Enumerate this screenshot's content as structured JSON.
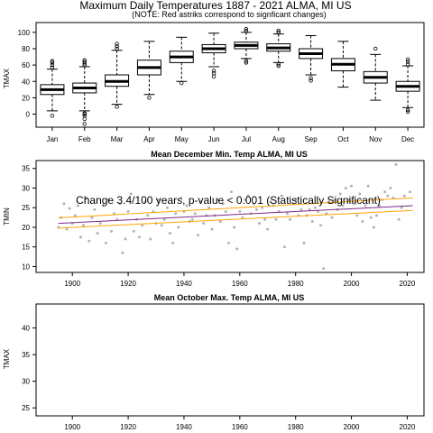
{
  "chart_data": [
    {
      "type": "box",
      "title": "Maximum Daily Temperatures 1887 - 2021 ALMA, MI US",
      "subtitle": "(NOTE: Red astriks correspond to signficant changes)",
      "ylabel": "TMAX",
      "ylim": [
        -16,
        112
      ],
      "yticks": [
        0,
        20,
        40,
        60,
        80,
        100
      ],
      "categories": [
        "Jan",
        "Feb",
        "Mar",
        "Apr",
        "May",
        "Jun",
        "Jul",
        "Aug",
        "Sep",
        "Oct",
        "Nov",
        "Dec"
      ],
      "boxes": [
        {
          "whislo": 4,
          "q1": 24,
          "med": 30,
          "q3": 36,
          "whishi": 55,
          "outliers": [
            -2,
            57,
            60,
            63,
            65
          ]
        },
        {
          "whislo": 4,
          "q1": 26,
          "med": 32,
          "q3": 38,
          "whishi": 58,
          "outliers": [
            -12,
            -6,
            -2,
            0,
            1,
            60,
            62,
            64,
            66
          ]
        },
        {
          "whislo": 12,
          "q1": 34,
          "med": 40,
          "q3": 48,
          "whishi": 78,
          "outliers": [
            9,
            80,
            83,
            86
          ]
        },
        {
          "whislo": 24,
          "q1": 48,
          "med": 57,
          "q3": 66,
          "whishi": 89,
          "outliers": [
            20
          ]
        },
        {
          "whislo": 40,
          "q1": 63,
          "med": 70,
          "q3": 77,
          "whishi": 94,
          "outliers": [
            38
          ]
        },
        {
          "whislo": 58,
          "q1": 75,
          "med": 80,
          "q3": 85,
          "whishi": 99,
          "outliers": [
            46,
            50,
            53
          ]
        },
        {
          "whislo": 68,
          "q1": 80,
          "med": 84,
          "q3": 88,
          "whishi": 100,
          "outliers": [
            63,
            65,
            102,
            104
          ]
        },
        {
          "whislo": 63,
          "q1": 77,
          "med": 81,
          "q3": 86,
          "whishi": 98,
          "outliers": [
            59,
            61,
            100,
            102
          ]
        },
        {
          "whislo": 48,
          "q1": 68,
          "med": 74,
          "q3": 80,
          "whishi": 96,
          "outliers": [
            41,
            44
          ]
        },
        {
          "whislo": 33,
          "q1": 53,
          "med": 61,
          "q3": 68,
          "whishi": 89,
          "outliers": []
        },
        {
          "whislo": 17,
          "q1": 38,
          "med": 45,
          "q3": 52,
          "whishi": 73,
          "outliers": [
            80
          ]
        },
        {
          "whislo": 8,
          "q1": 28,
          "med": 34,
          "q3": 40,
          "whishi": 59,
          "outliers": [
            3,
            5,
            61,
            64,
            67
          ]
        }
      ]
    },
    {
      "type": "scatter",
      "title": "Mean December Min. Temp ALMA, MI US",
      "ylabel": "TMIN",
      "xlim": [
        1887,
        2026
      ],
      "ylim": [
        8.5,
        37
      ],
      "xticks": [
        1900,
        1920,
        1940,
        1960,
        1980,
        2000,
        2020
      ],
      "yticks": [
        10,
        15,
        20,
        25,
        30,
        35
      ],
      "annotation": "Change 3.4/100 years, p-value < 0.001 (Statistically Significant)",
      "points": [
        {
          "x": 1895,
          "y": 20.0
        },
        {
          "x": 1896,
          "y": 22.5
        },
        {
          "x": 1897,
          "y": 26.0
        },
        {
          "x": 1898,
          "y": 19.5
        },
        {
          "x": 1899,
          "y": 24.8
        },
        {
          "x": 1900,
          "y": 21.0
        },
        {
          "x": 1901,
          "y": 23.0
        },
        {
          "x": 1902,
          "y": 25.5
        },
        {
          "x": 1903,
          "y": 17.5
        },
        {
          "x": 1904,
          "y": 20.5
        },
        {
          "x": 1905,
          "y": 27.5
        },
        {
          "x": 1906,
          "y": 16.5
        },
        {
          "x": 1907,
          "y": 22.5
        },
        {
          "x": 1908,
          "y": 24.5
        },
        {
          "x": 1909,
          "y": 18.5
        },
        {
          "x": 1910,
          "y": 21.0
        },
        {
          "x": 1911,
          "y": 25.5
        },
        {
          "x": 1912,
          "y": 16.0
        },
        {
          "x": 1913,
          "y": 27.0
        },
        {
          "x": 1914,
          "y": 19.0
        },
        {
          "x": 1915,
          "y": 23.5
        },
        {
          "x": 1916,
          "y": 22.0
        },
        {
          "x": 1917,
          "y": 26.0
        },
        {
          "x": 1918,
          "y": 13.5
        },
        {
          "x": 1919,
          "y": 17.0
        },
        {
          "x": 1920,
          "y": 24.0
        },
        {
          "x": 1921,
          "y": 28.5
        },
        {
          "x": 1922,
          "y": 19.0
        },
        {
          "x": 1923,
          "y": 22.0
        },
        {
          "x": 1924,
          "y": 17.5
        },
        {
          "x": 1925,
          "y": 20.5
        },
        {
          "x": 1926,
          "y": 26.5
        },
        {
          "x": 1927,
          "y": 23.0
        },
        {
          "x": 1928,
          "y": 17.0
        },
        {
          "x": 1929,
          "y": 24.0
        },
        {
          "x": 1930,
          "y": 21.0
        },
        {
          "x": 1931,
          "y": 27.0
        },
        {
          "x": 1932,
          "y": 20.5
        },
        {
          "x": 1933,
          "y": 22.0
        },
        {
          "x": 1934,
          "y": 25.0
        },
        {
          "x": 1935,
          "y": 18.5
        },
        {
          "x": 1936,
          "y": 16.0
        },
        {
          "x": 1937,
          "y": 23.5
        },
        {
          "x": 1938,
          "y": 20.0
        },
        {
          "x": 1939,
          "y": 27.5
        },
        {
          "x": 1940,
          "y": 24.0
        },
        {
          "x": 1941,
          "y": 25.5
        },
        {
          "x": 1942,
          "y": 21.5
        },
        {
          "x": 1943,
          "y": 22.0
        },
        {
          "x": 1944,
          "y": 23.5
        },
        {
          "x": 1945,
          "y": 18.0
        },
        {
          "x": 1946,
          "y": 26.5
        },
        {
          "x": 1947,
          "y": 21.0
        },
        {
          "x": 1948,
          "y": 23.0
        },
        {
          "x": 1949,
          "y": 25.0
        },
        {
          "x": 1950,
          "y": 19.5
        },
        {
          "x": 1951,
          "y": 23.0
        },
        {
          "x": 1952,
          "y": 27.0
        },
        {
          "x": 1953,
          "y": 21.5
        },
        {
          "x": 1954,
          "y": 26.0
        },
        {
          "x": 1955,
          "y": 24.0
        },
        {
          "x": 1956,
          "y": 16.0
        },
        {
          "x": 1957,
          "y": 29.0
        },
        {
          "x": 1958,
          "y": 20.0
        },
        {
          "x": 1959,
          "y": 14.5
        },
        {
          "x": 1960,
          "y": 24.0
        },
        {
          "x": 1961,
          "y": 22.5
        },
        {
          "x": 1962,
          "y": 27.0
        },
        {
          "x": 1963,
          "y": 28.0
        },
        {
          "x": 1964,
          "y": 23.5
        },
        {
          "x": 1965,
          "y": 26.0
        },
        {
          "x": 1966,
          "y": 24.5
        },
        {
          "x": 1967,
          "y": 21.0
        },
        {
          "x": 1968,
          "y": 25.0
        },
        {
          "x": 1969,
          "y": 22.0
        },
        {
          "x": 1970,
          "y": 19.5
        },
        {
          "x": 1971,
          "y": 26.5
        },
        {
          "x": 1972,
          "y": 25.5
        },
        {
          "x": 1973,
          "y": 22.0
        },
        {
          "x": 1974,
          "y": 24.0
        },
        {
          "x": 1975,
          "y": 28.0
        },
        {
          "x": 1976,
          "y": 15.0
        },
        {
          "x": 1977,
          "y": 23.5
        },
        {
          "x": 1978,
          "y": 22.0
        },
        {
          "x": 1979,
          "y": 26.0
        },
        {
          "x": 1980,
          "y": 27.0
        },
        {
          "x": 1981,
          "y": 23.0
        },
        {
          "x": 1982,
          "y": 24.5
        },
        {
          "x": 1983,
          "y": 16.0
        },
        {
          "x": 1984,
          "y": 23.0
        },
        {
          "x": 1985,
          "y": 24.5
        },
        {
          "x": 1986,
          "y": 21.5
        },
        {
          "x": 1987,
          "y": 25.0
        },
        {
          "x": 1988,
          "y": 24.0
        },
        {
          "x": 1989,
          "y": 20.5
        },
        {
          "x": 1990,
          "y": 9.5
        },
        {
          "x": 1991,
          "y": 23.5
        },
        {
          "x": 1992,
          "y": 26.5
        },
        {
          "x": 1993,
          "y": 22.5
        },
        {
          "x": 1994,
          "y": 27.0
        },
        {
          "x": 1995,
          "y": 24.5
        },
        {
          "x": 1996,
          "y": 28.5
        },
        {
          "x": 1997,
          "y": 25.5
        },
        {
          "x": 1998,
          "y": 30.0
        },
        {
          "x": 1999,
          "y": 27.0
        },
        {
          "x": 2000,
          "y": 30.5
        },
        {
          "x": 2001,
          "y": 26.0
        },
        {
          "x": 2002,
          "y": 23.0
        },
        {
          "x": 2003,
          "y": 28.5
        },
        {
          "x": 2004,
          "y": 21.5
        },
        {
          "x": 2005,
          "y": 25.5
        },
        {
          "x": 2006,
          "y": 30.5
        },
        {
          "x": 2007,
          "y": 22.5
        },
        {
          "x": 2008,
          "y": 20.0
        },
        {
          "x": 2009,
          "y": 23.0
        },
        {
          "x": 2010,
          "y": 25.5
        },
        {
          "x": 2011,
          "y": 27.0
        },
        {
          "x": 2012,
          "y": 29.0
        },
        {
          "x": 2013,
          "y": 28.0
        },
        {
          "x": 2014,
          "y": 30.0
        },
        {
          "x": 2015,
          "y": 27.5
        },
        {
          "x": 2016,
          "y": 36.0
        },
        {
          "x": 2017,
          "y": 22.0
        },
        {
          "x": 2018,
          "y": 25.0
        },
        {
          "x": 2019,
          "y": 28.0
        },
        {
          "x": 2021,
          "y": 29.0
        }
      ],
      "trend": {
        "x0": 1895,
        "y0": 21.0,
        "x1": 2022,
        "y1": 25.5
      },
      "band_upper": {
        "x0": 1895,
        "y0": 22.4,
        "x1": 2022,
        "y1": 27.5
      },
      "band_lower": {
        "x0": 1895,
        "y0": 19.8,
        "x1": 2022,
        "y1": 24.3
      },
      "colors": {
        "points": "#b3b3b3",
        "trend": "#7a2a8a",
        "band": "#ffa500"
      }
    },
    {
      "type": "scatter",
      "title": "Mean October Max. Temp ALMA, MI US",
      "ylabel": "TMAX",
      "xlim": [
        1887,
        2026
      ],
      "ylim": [
        23.5,
        44.5
      ],
      "xticks": [
        1900,
        1920,
        1940,
        1960,
        1980,
        2000,
        2020
      ],
      "yticks": [
        25,
        30,
        35,
        40
      ],
      "points": []
    }
  ]
}
